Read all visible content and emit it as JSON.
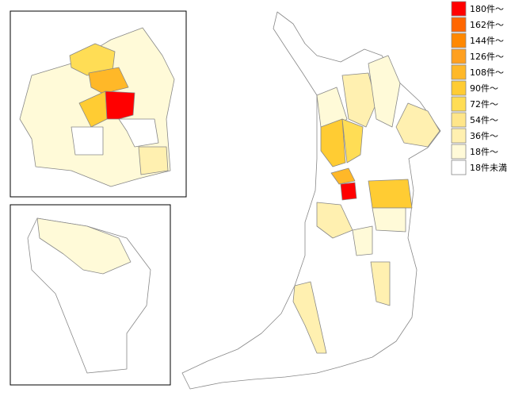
{
  "legend": [
    {
      "label": "180件～",
      "color": "#ff0000"
    },
    {
      "label": "162件～",
      "color": "#ff6600"
    },
    {
      "label": "144件～",
      "color": "#ff8800"
    },
    {
      "label": "126件～",
      "color": "#ffa020"
    },
    {
      "label": "108件～",
      "color": "#ffb828"
    },
    {
      "label": "90件～",
      "color": "#ffcc33"
    },
    {
      "label": "72件～",
      "color": "#ffdd55"
    },
    {
      "label": "54件～",
      "color": "#ffe68a"
    },
    {
      "label": "36件～",
      "color": "#fff0b0"
    },
    {
      "label": "18件～",
      "color": "#fffad8"
    },
    {
      "label": "18件未満",
      "color": "#ffffff"
    }
  ]
}
